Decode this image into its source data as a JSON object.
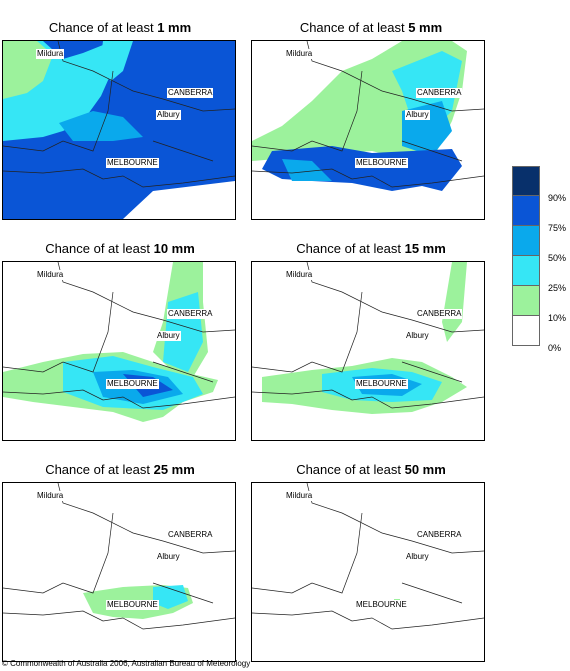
{
  "panels": [
    {
      "prefix": "Chance of at least ",
      "amount": "1 mm"
    },
    {
      "prefix": "Chance of at least ",
      "amount": "5 mm"
    },
    {
      "prefix": "Chance of at least ",
      "amount": "10 mm"
    },
    {
      "prefix": "Chance of at least ",
      "amount": "15 mm"
    },
    {
      "prefix": "Chance of at least ",
      "amount": "25 mm"
    },
    {
      "prefix": "Chance of at least ",
      "amount": "50 mm"
    }
  ],
  "places": {
    "mildura": "Mildura",
    "canberra": "CANBERRA",
    "albury": "Albury",
    "melbourne": "MELBOURNE"
  },
  "legend": {
    "labels": [
      "90%",
      "75%",
      "50%",
      "25%",
      "10%",
      "0%"
    ],
    "colors": [
      "#08306b",
      "#0a55d6",
      "#0aa9ec",
      "#36e6f5",
      "#9cf29c",
      "#ffffff"
    ]
  },
  "copyright": "© Commonwealth of Australia 2006, Australian Bureau of Meteorology"
}
